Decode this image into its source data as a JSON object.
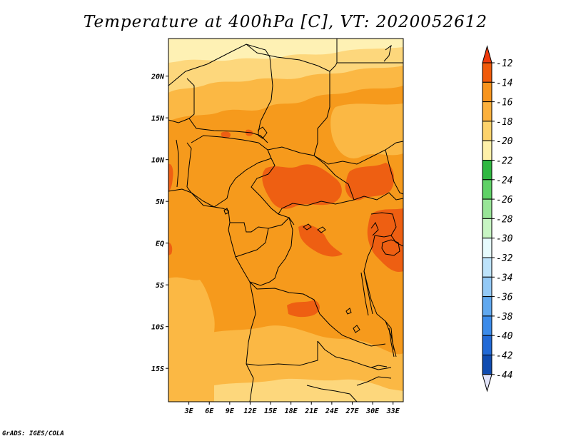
{
  "title": "Temperature at 400hPa [C], VT: 2020052612",
  "credit": "GrADS: IGES/COLA",
  "map": {
    "lon_range": [
      0,
      34.5
    ],
    "lat_range": [
      -19,
      24.5
    ],
    "x_ticks": [
      "3E",
      "6E",
      "9E",
      "12E",
      "15E",
      "18E",
      "21E",
      "24E",
      "27E",
      "30E",
      "33E"
    ],
    "x_tick_values": [
      3,
      6,
      9,
      12,
      15,
      18,
      21,
      24,
      27,
      30,
      33
    ],
    "y_ticks": [
      "20N",
      "15N",
      "10N",
      "5N",
      "EQ",
      "5S",
      "10S",
      "15S"
    ],
    "y_tick_values": [
      20,
      15,
      10,
      5,
      0,
      -5,
      -10,
      -15
    ]
  },
  "colorbar": {
    "labels": [
      "-12",
      "-14",
      "-16",
      "-18",
      "-20",
      "-22",
      "-24",
      "-26",
      "-28",
      "-30",
      "-32",
      "-34",
      "-36",
      "-38",
      "-40",
      "-42",
      "-44"
    ],
    "colors": [
      "#f05a0a",
      "#f7941d",
      "#fcb03c",
      "#fdd26b",
      "#fef0a9",
      "#2fb841",
      "#5fd166",
      "#98e597",
      "#c7f5c3",
      "#e6fbfd",
      "#bde3fb",
      "#93c9f6",
      "#60a8ef",
      "#3b8bea",
      "#2169d6",
      "#0f4bb0",
      "#0a1f78"
    ],
    "over_color": "#ee3a0c",
    "under_color": "#e3e5fb"
  },
  "colors": {
    "warm_1": "#ee5f12",
    "warm_2": "#f69a1c",
    "warm_3": "#fbb844",
    "warm_4": "#fdd77c",
    "warm_5": "#fef1b4"
  }
}
